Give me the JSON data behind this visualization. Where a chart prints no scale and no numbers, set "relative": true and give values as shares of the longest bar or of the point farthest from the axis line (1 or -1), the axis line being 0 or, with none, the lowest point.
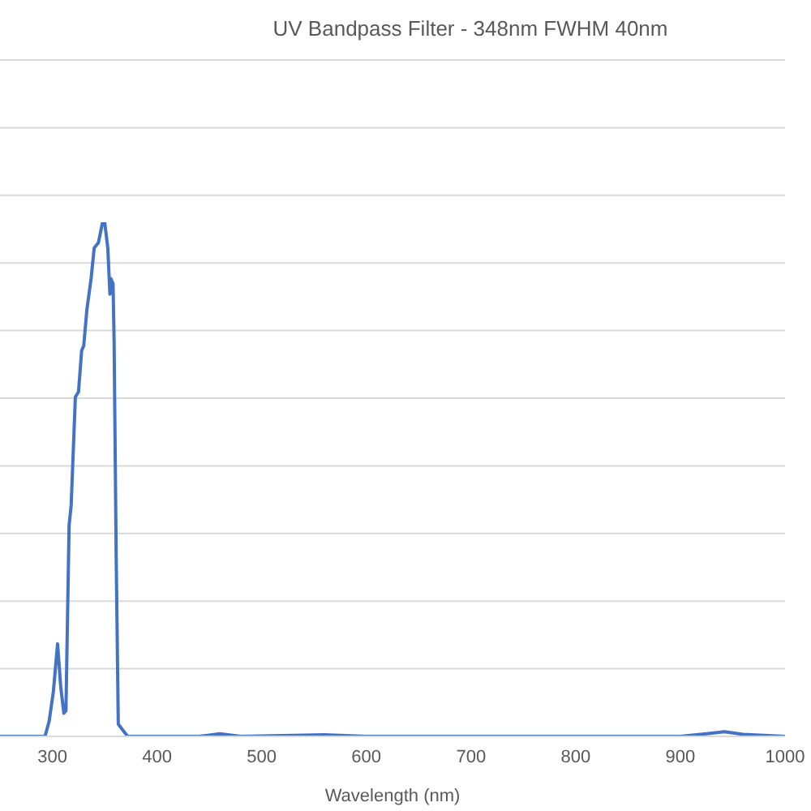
{
  "chart_data": {
    "type": "line",
    "title": "UV Bandpass Filter - 348nm FWHM 40nm",
    "xlabel": "Wavelength (nm)",
    "relative": true,
    "grid": "y",
    "xlim": [
      250,
      1000
    ],
    "xticks": [
      300,
      400,
      500,
      600,
      700,
      800,
      900,
      1000
    ],
    "x": [
      250,
      293,
      297,
      301,
      305,
      308,
      311,
      313,
      316,
      318,
      322,
      325,
      328,
      330,
      333,
      337,
      340,
      344,
      348,
      350,
      353,
      355,
      356,
      358,
      359,
      361,
      363,
      367,
      372,
      440,
      460,
      480,
      560,
      600,
      900,
      925,
      942,
      960,
      1000
    ],
    "series": [
      {
        "color": "#4472c4",
        "values": [
          0,
          0,
          0.03,
          0.087,
          0.18,
          0.097,
          0.045,
          0.05,
          0.41,
          0.45,
          0.66,
          0.67,
          0.75,
          0.76,
          0.83,
          0.89,
          0.95,
          0.96,
          1,
          1,
          0.95,
          0.86,
          0.89,
          0.88,
          0.77,
          0.35,
          0.024,
          0.013,
          0,
          0,
          0.005,
          0,
          0.003,
          0,
          0,
          0.005,
          0.009,
          0.004,
          0
        ]
      }
    ]
  }
}
